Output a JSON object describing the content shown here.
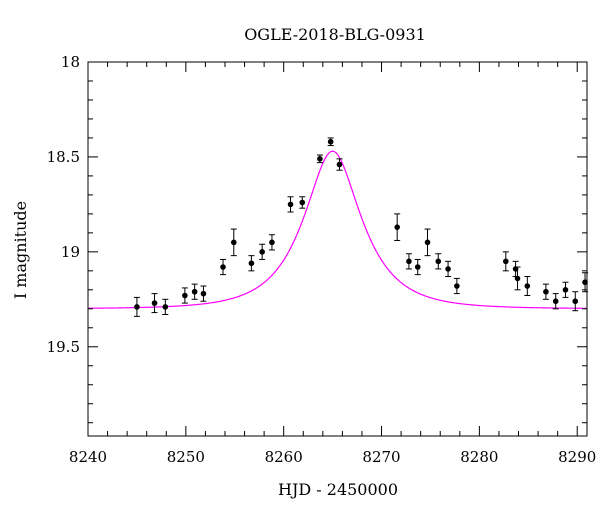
{
  "chart_data": {
    "type": "scatter",
    "title": "OGLE-2018-BLG-0931",
    "xlabel": "HJD - 2450000",
    "ylabel": "I magnitude",
    "xlim": [
      8240,
      8291
    ],
    "ylim": [
      18,
      19.97
    ],
    "y_inverted": true,
    "grid": false,
    "xticks": [
      8240,
      8250,
      8260,
      8270,
      8280,
      8290
    ],
    "xtick_labels": [
      "8240",
      "8250",
      "8260",
      "8270",
      "8280",
      "8290"
    ],
    "yticks": [
      18,
      18.5,
      19,
      19.5
    ],
    "ytick_labels": [
      "18",
      "18.5",
      "19",
      "19.5"
    ],
    "series": [
      {
        "type": "scatter_errorbar",
        "color": "#000000",
        "x": [
          8245.0,
          8246.8,
          8247.9,
          8249.9,
          8250.9,
          8251.8,
          8253.8,
          8254.9,
          8256.7,
          8257.8,
          8258.8,
          8260.7,
          8261.9,
          8263.7,
          8264.8,
          8265.7,
          8271.6,
          8272.8,
          8273.7,
          8274.7,
          8275.8,
          8276.8,
          8277.7,
          8282.7,
          8283.7,
          8283.9,
          8284.9,
          8286.8,
          8287.8,
          8288.8,
          8289.8,
          8290.8
        ],
        "y": [
          19.29,
          19.27,
          19.29,
          19.23,
          19.21,
          19.22,
          19.08,
          18.95,
          19.06,
          19.0,
          18.95,
          18.75,
          18.74,
          18.51,
          18.42,
          18.54,
          18.87,
          19.05,
          19.08,
          18.95,
          19.05,
          19.09,
          19.18,
          19.05,
          19.09,
          19.14,
          19.18,
          19.21,
          19.26,
          19.2,
          19.26,
          19.16
        ],
        "yerr": [
          0.05,
          0.05,
          0.04,
          0.04,
          0.04,
          0.04,
          0.04,
          0.07,
          0.04,
          0.04,
          0.04,
          0.04,
          0.03,
          0.02,
          0.02,
          0.03,
          0.07,
          0.04,
          0.04,
          0.07,
          0.04,
          0.04,
          0.04,
          0.05,
          0.04,
          0.06,
          0.05,
          0.04,
          0.04,
          0.04,
          0.05,
          0.05
        ]
      },
      {
        "type": "line",
        "color": "#ff00ff",
        "model": "paczynski",
        "baseline_mag": 19.3,
        "peak_mag": 18.47,
        "t0": 8265.0,
        "tE": 5.0
      }
    ]
  }
}
